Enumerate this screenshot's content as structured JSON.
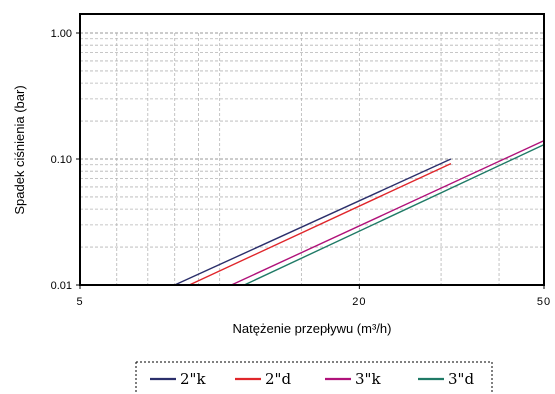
{
  "chart_data": {
    "type": "line",
    "xlabel": "Natężenie przepływu (m³/h)",
    "ylabel": "Spadek ciśnienia  (bar)",
    "x_scale": "log",
    "y_scale": "log",
    "xlim": [
      5,
      50
    ],
    "ylim": [
      0.01,
      1.0
    ],
    "x_ticks": [
      5,
      20,
      50
    ],
    "x_tick_labels": [
      "5",
      "20",
      "50"
    ],
    "y_ticks": [
      0.01,
      0.1,
      1.0
    ],
    "y_tick_labels": [
      "0.01",
      "0.10",
      "1.00"
    ],
    "grid": true,
    "legend_position": "bottom",
    "series": [
      {
        "name": "2\"k",
        "color": "#2b2f6b",
        "x": [
          8.0,
          31.5
        ],
        "y": [
          0.01,
          0.1
        ]
      },
      {
        "name": "2\"d",
        "color": "#e0262b",
        "x": [
          8.6,
          31.5
        ],
        "y": [
          0.01,
          0.092
        ]
      },
      {
        "name": "3\"k",
        "color": "#b0127a",
        "x": [
          10.6,
          50
        ],
        "y": [
          0.01,
          0.14
        ]
      },
      {
        "name": "3\"d",
        "color": "#1f7a66",
        "x": [
          11.3,
          50
        ],
        "y": [
          0.01,
          0.13
        ]
      }
    ]
  }
}
